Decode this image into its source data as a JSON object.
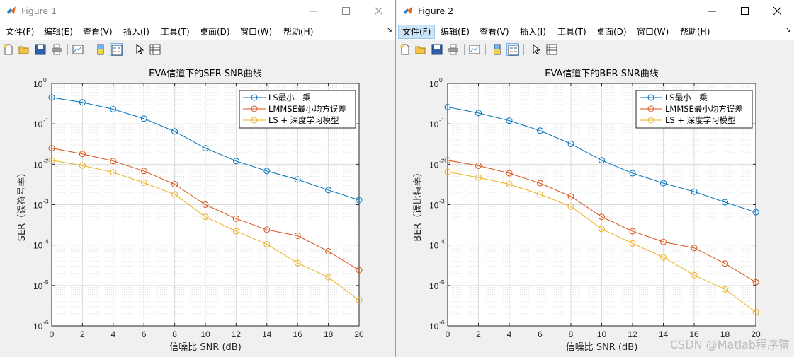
{
  "windows": [
    {
      "title": "Figure 1",
      "active": false,
      "menu": [
        "文件(F)",
        "编辑(E)",
        "查看(V)",
        "插入(I)",
        "工具(T)",
        "桌面(D)",
        "窗口(W)",
        "帮助(H)"
      ],
      "menu_active_index": -1
    },
    {
      "title": "Figure 2",
      "active": true,
      "menu": [
        "文件(F)",
        "编辑(E)",
        "查看(V)",
        "插入(I)",
        "工具(T)",
        "桌面(D)",
        "窗口(W)",
        "帮助(H)"
      ],
      "menu_active_index": 0
    }
  ],
  "toolbar_icons": [
    "new-figure-icon",
    "open-file-icon",
    "save-icon",
    "print-icon",
    "link-plot-icon",
    "colorbar-icon",
    "legend-icon",
    "edit-plot-arrow-icon",
    "property-inspector-icon"
  ],
  "colors": {
    "series1": "#0072BD",
    "series2": "#D95319",
    "series3": "#EDB120"
  },
  "chart_data": [
    {
      "type": "line",
      "title": "EVA信道下的SER-SNR曲线",
      "xlabel": "信噪比 SNR (dB)",
      "ylabel": "SER（误符号率）",
      "yscale": "log",
      "xlim": [
        0,
        20
      ],
      "ylim": [
        1e-06,
        1
      ],
      "xticks": [
        "0",
        "2",
        "4",
        "6",
        "8",
        "10",
        "12",
        "14",
        "16",
        "18",
        "20"
      ],
      "yticks": [
        "10",
        "10",
        "10",
        "10",
        "10",
        "10",
        "10"
      ],
      "ytick_exponents": [
        "-6",
        "-5",
        "-4",
        "-3",
        "-2",
        "-1",
        "0"
      ],
      "grid": true,
      "legend_position": "top-right",
      "x": [
        0,
        2,
        4,
        6,
        8,
        10,
        12,
        14,
        16,
        18,
        20
      ],
      "series": [
        {
          "name": "LS最小二乘",
          "values": [
            0.45,
            0.34,
            0.23,
            0.135,
            0.065,
            0.025,
            0.012,
            0.0068,
            0.0042,
            0.0023,
            0.0013
          ]
        },
        {
          "name": "LMMSE最小均方误差",
          "values": [
            0.025,
            0.018,
            0.012,
            0.0068,
            0.0032,
            0.001,
            0.00045,
            0.00024,
            0.00017,
            7e-05,
            2.4e-05
          ]
        },
        {
          "name": "LS + 深度学习模型",
          "values": [
            0.0125,
            0.0093,
            0.0063,
            0.0035,
            0.0018,
            0.0005,
            0.00022,
            0.000105,
            3.6e-05,
            1.6e-05,
            4.3e-06
          ]
        }
      ]
    },
    {
      "type": "line",
      "title": "EVA信道下的BER-SNR曲线",
      "xlabel": "信噪比 SNR (dB)",
      "ylabel": "BER（误比特率）",
      "yscale": "log",
      "xlim": [
        0,
        20
      ],
      "ylim": [
        1e-06,
        1
      ],
      "xticks": [
        "0",
        "2",
        "4",
        "6",
        "8",
        "10",
        "12",
        "14",
        "16",
        "18",
        "20"
      ],
      "yticks": [
        "10",
        "10",
        "10",
        "10",
        "10",
        "10",
        "10"
      ],
      "ytick_exponents": [
        "-6",
        "-5",
        "-4",
        "-3",
        "-2",
        "-1",
        "0"
      ],
      "grid": true,
      "legend_position": "top-right",
      "x": [
        0,
        2,
        4,
        6,
        8,
        10,
        12,
        14,
        16,
        18,
        20
      ],
      "series": [
        {
          "name": "LS最小二乘",
          "values": [
            0.26,
            0.185,
            0.12,
            0.068,
            0.032,
            0.0125,
            0.006,
            0.0034,
            0.0021,
            0.00115,
            0.00065
          ]
        },
        {
          "name": "LMMSE最小均方误差",
          "values": [
            0.0125,
            0.0092,
            0.006,
            0.0034,
            0.0016,
            0.0005,
            0.00022,
            0.00012,
            8.5e-05,
            3.5e-05,
            1.2e-05
          ]
        },
        {
          "name": "LS + 深度学习模型",
          "values": [
            0.0065,
            0.0047,
            0.0032,
            0.0018,
            0.0009,
            0.00025,
            0.00011,
            5e-05,
            1.8e-05,
            8e-06,
            2.2e-06
          ]
        }
      ]
    }
  ],
  "watermark": "CSDN @Matlab程序猿"
}
